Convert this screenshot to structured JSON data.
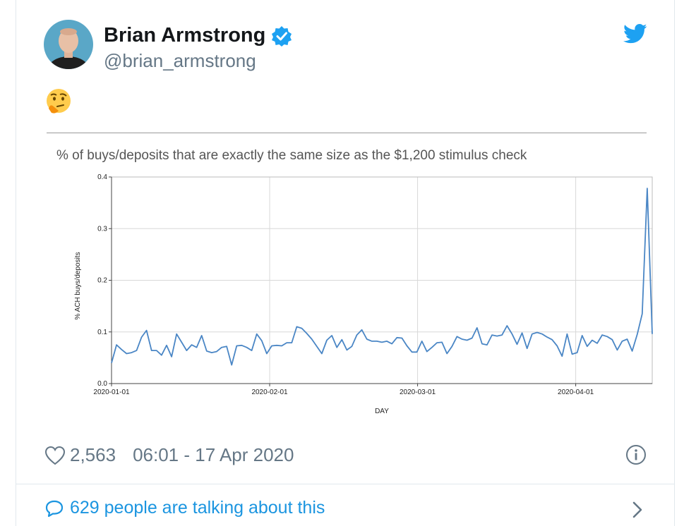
{
  "tweet": {
    "author_name": "Brian Armstrong",
    "handle": "@brian_armstrong",
    "verified": true,
    "body_emoji": "thinking-face",
    "likes": "2,563",
    "timestamp": "06:01 - 17 Apr 2020",
    "talking": "629 people are talking about this"
  },
  "colors": {
    "twitter_blue": "#1da1f2",
    "link_blue": "#1b95e0",
    "line": "#4a86c5"
  },
  "chart_data": {
    "type": "line",
    "title": "% of buys/deposits that are exactly the same size as the $1,200 stimulus check",
    "xlabel": "DAY",
    "ylabel": "% ACH buys/deposits",
    "ylim": [
      0.0,
      0.4
    ],
    "yticks": [
      "0.0",
      "0.1",
      "0.2",
      "0.3",
      "0.4"
    ],
    "xticks": [
      "2020-01-01",
      "2020-02-01",
      "2020-03-01",
      "2020-04-01"
    ],
    "grid": true,
    "x_start": "2020-01-01",
    "x_end": "2020-04-16",
    "series": [
      {
        "name": "",
        "values": [
          0.04,
          0.075,
          0.066,
          0.058,
          0.06,
          0.064,
          0.09,
          0.103,
          0.064,
          0.064,
          0.055,
          0.074,
          0.052,
          0.096,
          0.08,
          0.064,
          0.075,
          0.07,
          0.093,
          0.063,
          0.06,
          0.062,
          0.07,
          0.072,
          0.036,
          0.073,
          0.074,
          0.07,
          0.064,
          0.096,
          0.083,
          0.058,
          0.073,
          0.074,
          0.073,
          0.079,
          0.079,
          0.11,
          0.107,
          0.097,
          0.086,
          0.072,
          0.058,
          0.084,
          0.093,
          0.07,
          0.085,
          0.065,
          0.072,
          0.094,
          0.104,
          0.086,
          0.082,
          0.082,
          0.08,
          0.082,
          0.077,
          0.089,
          0.088,
          0.073,
          0.061,
          0.061,
          0.082,
          0.062,
          0.07,
          0.079,
          0.08,
          0.058,
          0.072,
          0.091,
          0.086,
          0.084,
          0.088,
          0.108,
          0.077,
          0.075,
          0.094,
          0.092,
          0.094,
          0.112,
          0.096,
          0.076,
          0.098,
          0.068,
          0.096,
          0.099,
          0.096,
          0.09,
          0.085,
          0.073,
          0.053,
          0.096,
          0.057,
          0.06,
          0.093,
          0.072,
          0.084,
          0.078,
          0.094,
          0.091,
          0.085,
          0.065,
          0.082,
          0.086,
          0.063,
          0.095,
          0.135,
          0.378,
          0.096
        ]
      }
    ]
  }
}
